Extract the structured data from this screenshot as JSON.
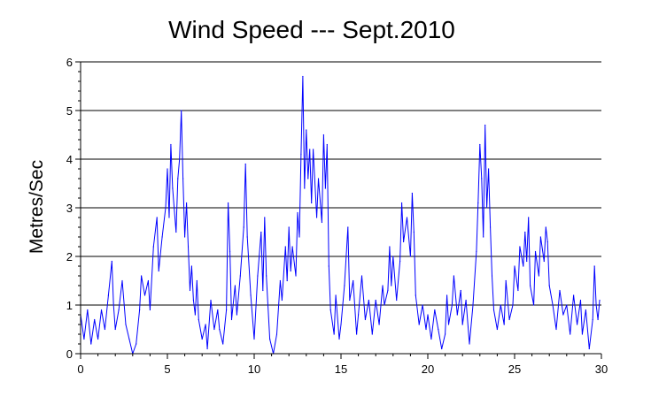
{
  "chart_data": {
    "type": "line",
    "title": "Wind Speed --- Sept.2010",
    "xlabel": "",
    "ylabel": "Metres/Sec",
    "xlim": [
      0,
      30
    ],
    "ylim": [
      0,
      6
    ],
    "x_ticks": [
      "0",
      "5",
      "10",
      "15",
      "20",
      "25",
      "30"
    ],
    "y_ticks": [
      "0",
      "1",
      "2",
      "3",
      "4",
      "5",
      "6"
    ],
    "grid": "horizontal",
    "line_color": "#0000ff",
    "series": [
      {
        "points": [
          [
            0.0,
            0.8
          ],
          [
            0.2,
            0.3
          ],
          [
            0.4,
            0.9
          ],
          [
            0.6,
            0.2
          ],
          [
            0.8,
            0.7
          ],
          [
            1.0,
            0.3
          ],
          [
            1.2,
            0.9
          ],
          [
            1.4,
            0.5
          ],
          [
            1.6,
            1.2
          ],
          [
            1.8,
            1.9
          ],
          [
            1.9,
            1.0
          ],
          [
            2.0,
            0.5
          ],
          [
            2.2,
            0.9
          ],
          [
            2.4,
            1.5
          ],
          [
            2.6,
            0.6
          ],
          [
            2.8,
            0.3
          ],
          [
            3.0,
            0.0
          ],
          [
            3.2,
            0.2
          ],
          [
            3.4,
            0.9
          ],
          [
            3.5,
            1.6
          ],
          [
            3.7,
            1.2
          ],
          [
            3.9,
            1.5
          ],
          [
            4.0,
            0.9
          ],
          [
            4.2,
            2.2
          ],
          [
            4.4,
            2.8
          ],
          [
            4.5,
            1.7
          ],
          [
            4.7,
            2.4
          ],
          [
            4.9,
            3.0
          ],
          [
            5.0,
            3.8
          ],
          [
            5.1,
            2.8
          ],
          [
            5.2,
            4.3
          ],
          [
            5.3,
            3.4
          ],
          [
            5.5,
            2.5
          ],
          [
            5.6,
            3.6
          ],
          [
            5.7,
            4.0
          ],
          [
            5.8,
            5.0
          ],
          [
            5.9,
            3.6
          ],
          [
            6.0,
            2.4
          ],
          [
            6.1,
            3.1
          ],
          [
            6.2,
            2.2
          ],
          [
            6.3,
            1.3
          ],
          [
            6.4,
            1.8
          ],
          [
            6.5,
            1.1
          ],
          [
            6.6,
            0.8
          ],
          [
            6.7,
            1.5
          ],
          [
            6.8,
            0.7
          ],
          [
            7.0,
            0.3
          ],
          [
            7.2,
            0.6
          ],
          [
            7.3,
            0.1
          ],
          [
            7.5,
            1.1
          ],
          [
            7.7,
            0.5
          ],
          [
            7.9,
            0.9
          ],
          [
            8.0,
            0.5
          ],
          [
            8.2,
            0.2
          ],
          [
            8.4,
            0.9
          ],
          [
            8.5,
            3.1
          ],
          [
            8.6,
            2.1
          ],
          [
            8.7,
            0.7
          ],
          [
            8.9,
            1.4
          ],
          [
            9.0,
            0.8
          ],
          [
            9.2,
            1.6
          ],
          [
            9.4,
            2.6
          ],
          [
            9.5,
            3.9
          ],
          [
            9.6,
            2.4
          ],
          [
            9.8,
            1.2
          ],
          [
            10.0,
            0.3
          ],
          [
            10.2,
            1.6
          ],
          [
            10.4,
            2.5
          ],
          [
            10.5,
            1.3
          ],
          [
            10.6,
            2.8
          ],
          [
            10.7,
            1.6
          ],
          [
            10.9,
            0.3
          ],
          [
            11.1,
            0.0
          ],
          [
            11.3,
            0.4
          ],
          [
            11.5,
            1.5
          ],
          [
            11.6,
            1.1
          ],
          [
            11.8,
            2.2
          ],
          [
            11.9,
            1.5
          ],
          [
            12.0,
            2.6
          ],
          [
            12.1,
            1.7
          ],
          [
            12.2,
            2.2
          ],
          [
            12.4,
            1.6
          ],
          [
            12.5,
            2.9
          ],
          [
            12.6,
            2.4
          ],
          [
            12.7,
            4.1
          ],
          [
            12.8,
            5.7
          ],
          [
            12.9,
            3.4
          ],
          [
            13.0,
            4.6
          ],
          [
            13.1,
            3.6
          ],
          [
            13.2,
            4.2
          ],
          [
            13.3,
            3.1
          ],
          [
            13.4,
            4.2
          ],
          [
            13.6,
            2.8
          ],
          [
            13.7,
            3.6
          ],
          [
            13.9,
            2.7
          ],
          [
            14.0,
            4.5
          ],
          [
            14.1,
            3.4
          ],
          [
            14.2,
            4.3
          ],
          [
            14.3,
            1.8
          ],
          [
            14.4,
            0.9
          ],
          [
            14.6,
            0.4
          ],
          [
            14.7,
            1.2
          ],
          [
            14.9,
            0.3
          ],
          [
            15.0,
            0.6
          ],
          [
            15.2,
            1.4
          ],
          [
            15.4,
            2.6
          ],
          [
            15.5,
            1.1
          ],
          [
            15.7,
            1.5
          ],
          [
            15.9,
            0.4
          ],
          [
            16.0,
            0.8
          ],
          [
            16.2,
            1.6
          ],
          [
            16.4,
            0.7
          ],
          [
            16.6,
            1.1
          ],
          [
            16.8,
            0.4
          ],
          [
            17.0,
            1.1
          ],
          [
            17.2,
            0.6
          ],
          [
            17.4,
            1.4
          ],
          [
            17.5,
            1.0
          ],
          [
            17.7,
            1.3
          ],
          [
            17.8,
            2.2
          ],
          [
            17.9,
            1.4
          ],
          [
            18.0,
            2.0
          ],
          [
            18.2,
            1.1
          ],
          [
            18.4,
            1.9
          ],
          [
            18.5,
            3.1
          ],
          [
            18.6,
            2.3
          ],
          [
            18.8,
            2.8
          ],
          [
            19.0,
            2.0
          ],
          [
            19.1,
            3.3
          ],
          [
            19.2,
            2.5
          ],
          [
            19.3,
            1.2
          ],
          [
            19.5,
            0.6
          ],
          [
            19.7,
            1.0
          ],
          [
            19.9,
            0.5
          ],
          [
            20.0,
            0.8
          ],
          [
            20.2,
            0.3
          ],
          [
            20.4,
            0.9
          ],
          [
            20.6,
            0.5
          ],
          [
            20.8,
            0.1
          ],
          [
            21.0,
            0.4
          ],
          [
            21.1,
            1.2
          ],
          [
            21.2,
            0.6
          ],
          [
            21.4,
            1.0
          ],
          [
            21.5,
            1.6
          ],
          [
            21.7,
            0.8
          ],
          [
            21.9,
            1.3
          ],
          [
            22.0,
            0.6
          ],
          [
            22.2,
            1.1
          ],
          [
            22.4,
            0.2
          ],
          [
            22.6,
            1.0
          ],
          [
            22.8,
            2.1
          ],
          [
            22.9,
            3.1
          ],
          [
            23.0,
            4.3
          ],
          [
            23.1,
            3.6
          ],
          [
            23.2,
            2.4
          ],
          [
            23.3,
            4.7
          ],
          [
            23.4,
            3.0
          ],
          [
            23.5,
            3.8
          ],
          [
            23.6,
            2.6
          ],
          [
            23.7,
            1.6
          ],
          [
            23.8,
            0.9
          ],
          [
            24.0,
            0.5
          ],
          [
            24.2,
            1.0
          ],
          [
            24.4,
            0.6
          ],
          [
            24.5,
            1.5
          ],
          [
            24.7,
            0.7
          ],
          [
            24.9,
            1.0
          ],
          [
            25.0,
            1.8
          ],
          [
            25.2,
            1.3
          ],
          [
            25.3,
            2.2
          ],
          [
            25.5,
            1.8
          ],
          [
            25.6,
            2.5
          ],
          [
            25.7,
            1.9
          ],
          [
            25.8,
            2.8
          ],
          [
            25.9,
            1.4
          ],
          [
            26.1,
            1.0
          ],
          [
            26.2,
            2.1
          ],
          [
            26.4,
            1.6
          ],
          [
            26.5,
            2.4
          ],
          [
            26.7,
            1.9
          ],
          [
            26.8,
            2.6
          ],
          [
            26.9,
            2.3
          ],
          [
            27.0,
            1.4
          ],
          [
            27.2,
            1.0
          ],
          [
            27.4,
            0.5
          ],
          [
            27.6,
            1.3
          ],
          [
            27.8,
            0.8
          ],
          [
            28.0,
            1.0
          ],
          [
            28.2,
            0.4
          ],
          [
            28.4,
            1.2
          ],
          [
            28.6,
            0.6
          ],
          [
            28.8,
            1.1
          ],
          [
            28.9,
            0.4
          ],
          [
            29.1,
            0.9
          ],
          [
            29.3,
            0.1
          ],
          [
            29.5,
            0.7
          ],
          [
            29.6,
            1.8
          ],
          [
            29.7,
            1.0
          ],
          [
            29.8,
            0.7
          ],
          [
            29.9,
            1.1
          ]
        ]
      }
    ]
  }
}
